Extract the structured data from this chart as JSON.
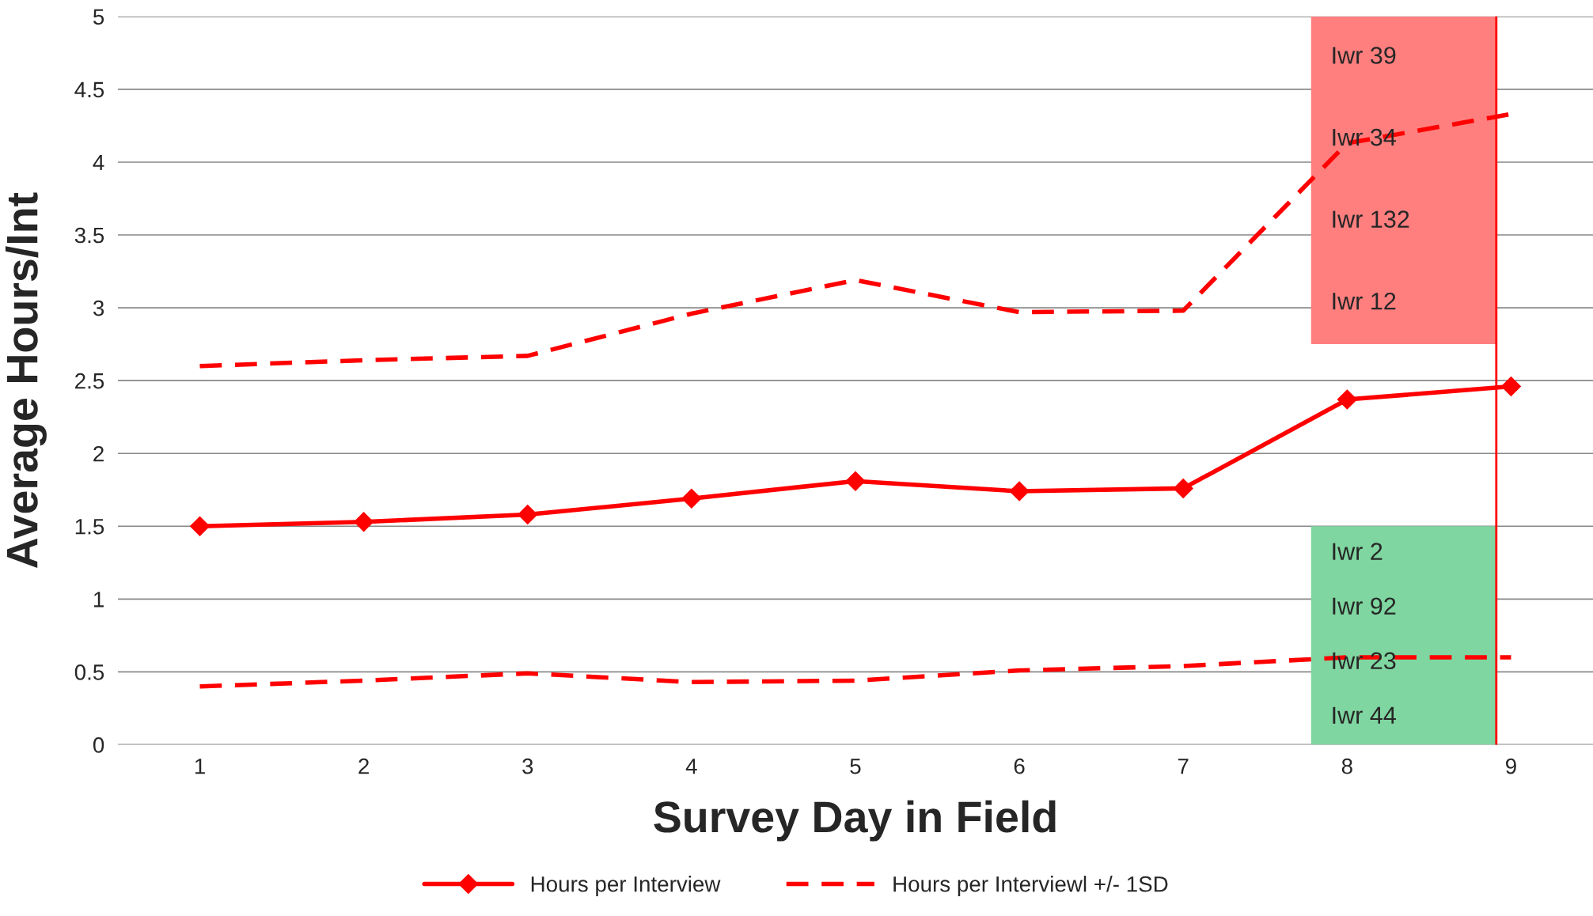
{
  "chart_data": {
    "type": "line",
    "xlabel": "Survey Day in Field",
    "ylabel": "Average Hours/Int",
    "x": [
      1,
      2,
      3,
      4,
      5,
      6,
      7,
      8,
      9
    ],
    "xlim": [
      0.5,
      9.5
    ],
    "xticks": [
      1,
      2,
      3,
      4,
      5,
      6,
      7,
      8,
      9
    ],
    "ref_lines": [
      {
        "axis": "x",
        "value": 8.91,
        "color": "#ff0000"
      }
    ],
    "series": [
      {
        "name": "Hours per Interview",
        "color": "#ff0000",
        "marker": "diamond",
        "line_style": "solid",
        "values": [
          1.5,
          1.53,
          1.58,
          1.69,
          1.81,
          1.74,
          1.76,
          2.37,
          2.46
        ]
      },
      {
        "name": "Hours per Interviewl +/- 1SD",
        "color": "#ff0000",
        "marker": "none",
        "line_style": "dashed",
        "values": [
          2.6,
          2.64,
          2.67,
          2.96,
          3.19,
          2.97,
          2.98,
          4.13,
          4.33
        ]
      },
      {
        "color": "#ff0000",
        "marker": "none",
        "line_style": "dashed",
        "values": [
          0.4,
          0.44,
          0.49,
          0.43,
          0.44,
          0.51,
          0.54,
          0.6,
          0.6
        ]
      }
    ],
    "ylim": [
      0,
      5
    ],
    "yticks": [
      0,
      0.5,
      1,
      1.5,
      2,
      2.5,
      3,
      3.5,
      4,
      4.5,
      5
    ],
    "grid": "y",
    "legend": "bottom",
    "bands": [
      {
        "axis": "y",
        "from": 2.75,
        "to": 5,
        "color": "#ff7f7f"
      },
      {
        "axis": "y",
        "from": 0,
        "to": 1.5,
        "color": "#7fd6a0"
      }
    ],
    "annotations": [
      "Iwr 39",
      "Iwr 34",
      "Iwr 132",
      "Iwr 12",
      "Iwr 2",
      "Iwr 92",
      "Iwr 23",
      "Iwr 44"
    ]
  }
}
